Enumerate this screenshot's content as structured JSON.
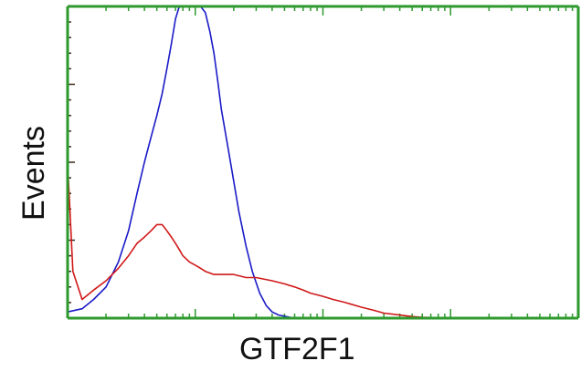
{
  "chart_data": {
    "type": "line",
    "title": "",
    "xlabel": "GTF2F1",
    "ylabel": "Events",
    "x_scale": "log",
    "xlim": [
      1,
      10000
    ],
    "ylim": [
      0,
      100
    ],
    "grid": false,
    "legend": "none",
    "colors": {
      "frame": "#2e9a2e",
      "series_blue": "#1a1ac8",
      "series_red": "#d01818",
      "text": "#111111"
    },
    "series": [
      {
        "color": "#1a1ac8",
        "x": [
          1,
          1.3,
          1.6,
          2,
          2.5,
          3,
          3.5,
          4,
          4.5,
          5,
          5.5,
          6,
          6.5,
          7,
          7.5,
          8,
          8.5,
          9,
          9.5,
          10,
          11,
          12,
          13,
          14,
          15,
          16,
          18,
          20,
          22,
          25,
          28,
          32,
          36,
          40,
          45,
          50,
          55,
          60,
          70
        ],
        "y": [
          2,
          3,
          6,
          10,
          18,
          28,
          40,
          50,
          58,
          65,
          72,
          80,
          88,
          96,
          100,
          100,
          100,
          100,
          100,
          100,
          100,
          98,
          92,
          85,
          76,
          67,
          55,
          44,
          34,
          23,
          15,
          8,
          4,
          2,
          1,
          0.6,
          0.3,
          0.1,
          0
        ]
      },
      {
        "color": "#d01818",
        "x": [
          1,
          1.1,
          1.3,
          1.6,
          2,
          2.5,
          3,
          3.5,
          4,
          4.5,
          5,
          5.5,
          6,
          6.5,
          7,
          7.5,
          8,
          9,
          10,
          11,
          12,
          14,
          16,
          18,
          20,
          25,
          30,
          40,
          50,
          60,
          70,
          80,
          100,
          120,
          150,
          200,
          250,
          300,
          400,
          500,
          600,
          700,
          900
        ],
        "y": [
          50,
          15,
          6,
          9,
          12,
          16,
          20,
          24,
          26,
          28,
          30,
          30,
          28,
          26,
          24,
          22,
          20,
          18,
          17,
          16,
          15,
          14,
          14,
          14,
          14,
          13,
          13,
          12,
          11,
          10,
          9,
          8,
          7,
          6,
          5,
          3.5,
          2.5,
          1.6,
          1,
          0.5,
          0.3,
          0.2,
          0.1
        ]
      }
    ]
  }
}
